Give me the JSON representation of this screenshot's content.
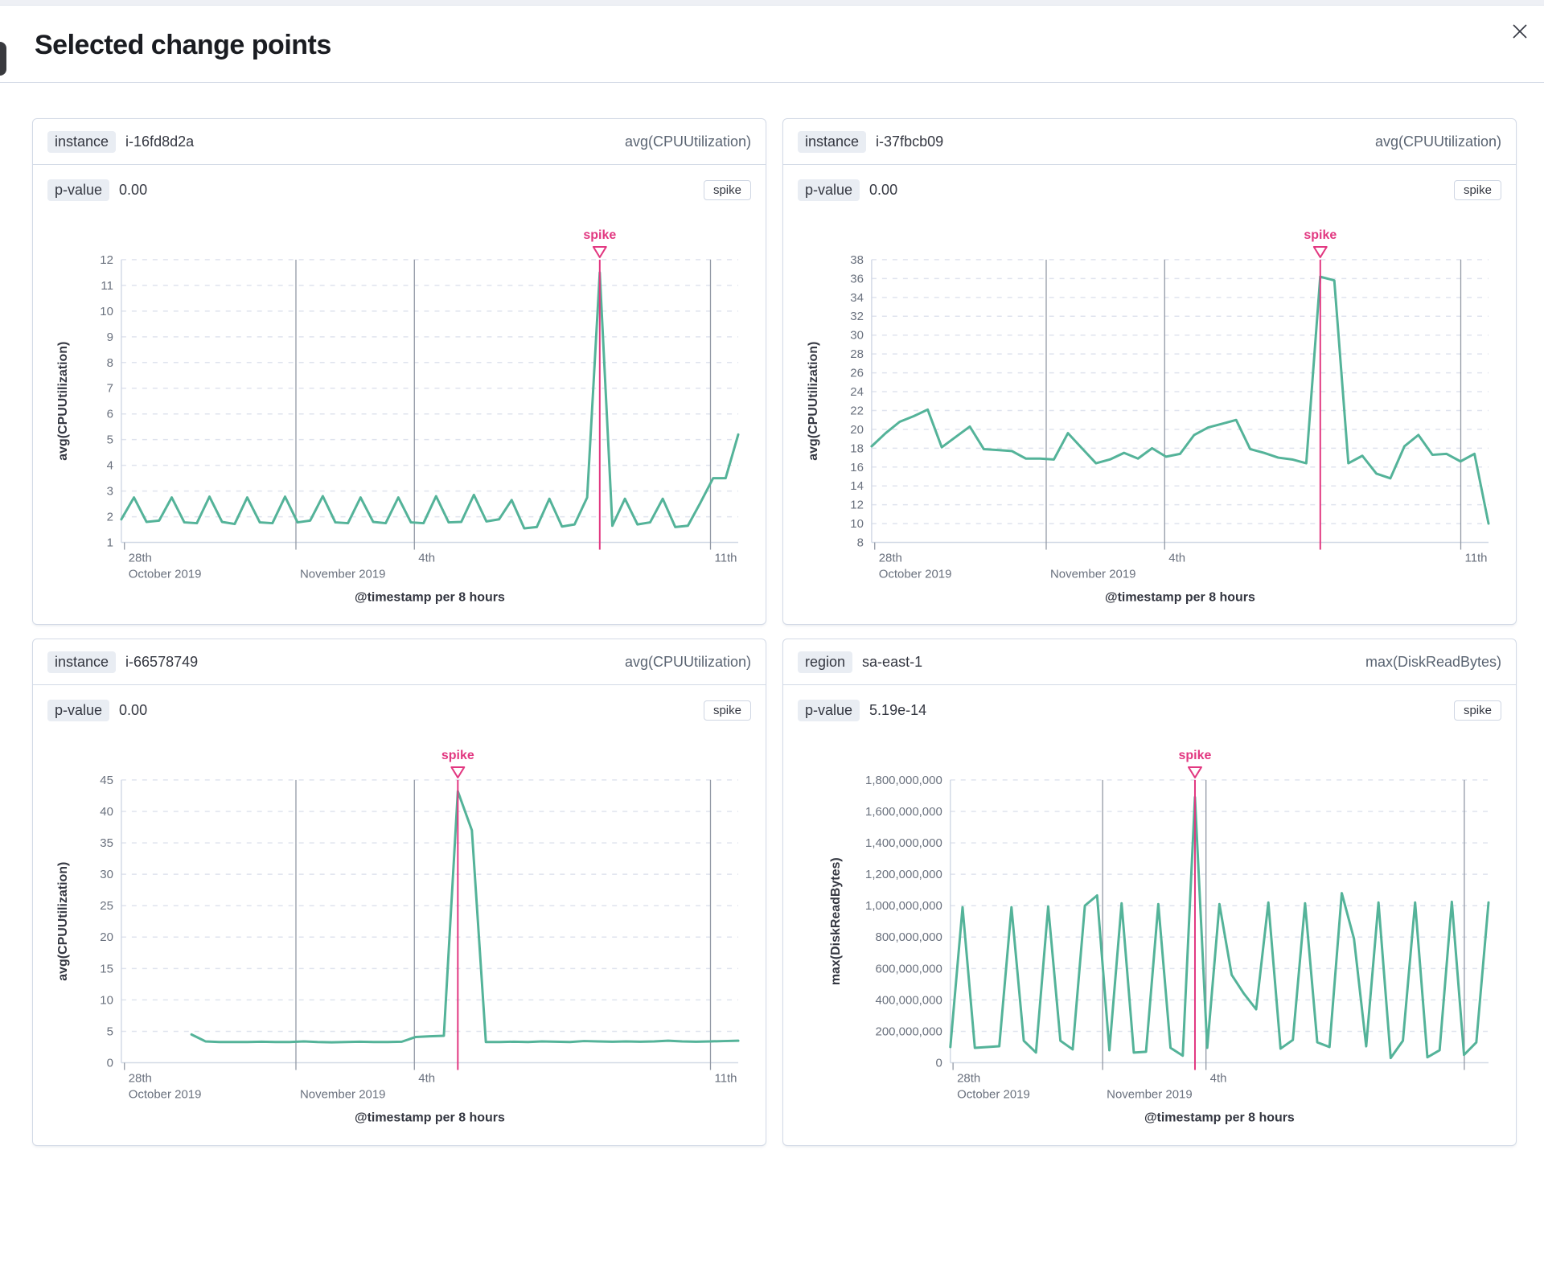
{
  "modal": {
    "title": "Selected change points"
  },
  "colors": {
    "line": "#54b399",
    "annotation": "#e23881",
    "grid": "#dfe3ee",
    "axis": "#d3dae6",
    "separator": "#9299a5",
    "tick_text": "#69707d",
    "title_text": "#343741",
    "metric_text": "#5a6472",
    "badge_bg": "#e9edf3",
    "card_border": "#d3dae6"
  },
  "cards": [
    {
      "badge": "instance",
      "badge_value": "i-16fd8d2a",
      "metric": "avg(CPUUtilization)",
      "pvalue_label": "p-value",
      "pvalue": "0.00",
      "type_label": "spike"
    },
    {
      "badge": "instance",
      "badge_value": "i-37fbcb09",
      "metric": "avg(CPUUtilization)",
      "pvalue_label": "p-value",
      "pvalue": "0.00",
      "type_label": "spike"
    },
    {
      "badge": "instance",
      "badge_value": "i-66578749",
      "metric": "avg(CPUUtilization)",
      "pvalue_label": "p-value",
      "pvalue": "0.00",
      "type_label": "spike"
    },
    {
      "badge": "region",
      "badge_value": "sa-east-1",
      "metric": "max(DiskReadBytes)",
      "pvalue_label": "p-value",
      "pvalue": "5.19e-14",
      "type_label": "spike"
    }
  ],
  "chart_data": [
    {
      "type": "line",
      "entity": "i-16fd8d2a",
      "xlabel": "@timestamp per 8 hours",
      "ylabel": "avg(CPUUtilization)",
      "ylim": [
        1,
        12
      ],
      "ytick_step": 1,
      "yformat": "plain",
      "grid": true,
      "legend_position": "none",
      "annotation": {
        "label": "spike",
        "at": "max"
      },
      "xticks": [
        {
          "f": 0.005,
          "l1": "28th",
          "l2": "October 2019",
          "line": false
        },
        {
          "f": 0.283,
          "l1": "",
          "l2": "November 2019",
          "line": true
        },
        {
          "f": 0.475,
          "l1": "4th",
          "l2": "",
          "line": true
        },
        {
          "f": 0.955,
          "l1": "11th",
          "l2": "",
          "line": true
        }
      ],
      "values": [
        1.9,
        2.75,
        1.8,
        1.85,
        2.75,
        1.78,
        1.75,
        2.78,
        1.8,
        1.72,
        2.75,
        1.78,
        1.75,
        2.78,
        1.78,
        1.85,
        2.8,
        1.78,
        1.75,
        2.75,
        1.8,
        1.75,
        2.75,
        1.78,
        1.75,
        2.8,
        1.78,
        1.8,
        2.85,
        1.82,
        1.9,
        2.65,
        1.55,
        1.6,
        2.7,
        1.62,
        1.7,
        2.75,
        11.5,
        1.65,
        2.7,
        1.7,
        1.78,
        2.7,
        1.6,
        1.65,
        2.55,
        3.5,
        3.5,
        5.2
      ]
    },
    {
      "type": "line",
      "entity": "i-37fbcb09",
      "xlabel": "@timestamp per 8 hours",
      "ylabel": "avg(CPUUtilization)",
      "ylim": [
        8,
        38
      ],
      "ytick_step": 2,
      "yformat": "plain",
      "grid": true,
      "legend_position": "none",
      "annotation": {
        "label": "spike",
        "at": "max"
      },
      "xticks": [
        {
          "f": 0.005,
          "l1": "28th",
          "l2": "October 2019",
          "line": false
        },
        {
          "f": 0.283,
          "l1": "",
          "l2": "November 2019",
          "line": true
        },
        {
          "f": 0.475,
          "l1": "4th",
          "l2": "",
          "line": true
        },
        {
          "f": 0.955,
          "l1": "11th",
          "l2": "",
          "line": true
        }
      ],
      "values": [
        18.2,
        19.6,
        20.8,
        21.4,
        22.1,
        18.1,
        19.2,
        20.3,
        17.9,
        17.8,
        17.7,
        16.9,
        16.9,
        16.8,
        19.6,
        18,
        16.4,
        16.8,
        17.5,
        16.9,
        18,
        17.1,
        17.4,
        19.4,
        20.2,
        20.6,
        21,
        17.9,
        17.5,
        17,
        16.8,
        16.4,
        36.2,
        35.8,
        16.4,
        17.2,
        15.3,
        14.8,
        18.2,
        19.4,
        17.3,
        17.4,
        16.6,
        17.4,
        10
      ]
    },
    {
      "type": "line",
      "entity": "i-66578749",
      "xlabel": "@timestamp per 8 hours",
      "ylabel": "avg(CPUUtilization)",
      "ylim": [
        0,
        45
      ],
      "ytick_step": 5,
      "yformat": "plain",
      "grid": true,
      "legend_position": "none",
      "annotation": {
        "label": "spike",
        "at": "max"
      },
      "xticks": [
        {
          "f": 0.005,
          "l1": "28th",
          "l2": "October 2019",
          "line": false
        },
        {
          "f": 0.283,
          "l1": "",
          "l2": "November 2019",
          "line": true
        },
        {
          "f": 0.475,
          "l1": "4th",
          "l2": "",
          "line": true
        },
        {
          "f": 0.955,
          "l1": "11th",
          "l2": "",
          "line": true
        }
      ],
      "values": [
        null,
        null,
        null,
        null,
        null,
        4.5,
        3.4,
        3.3,
        3.3,
        3.3,
        3.35,
        3.3,
        3.3,
        3.4,
        3.3,
        3.25,
        3.3,
        3.35,
        3.3,
        3.3,
        3.35,
        4.1,
        4.2,
        4.3,
        43.2,
        37,
        3.3,
        3.3,
        3.35,
        3.3,
        3.4,
        3.35,
        3.3,
        3.45,
        3.4,
        3.35,
        3.4,
        3.35,
        3.4,
        3.5,
        3.4,
        3.35,
        3.4,
        3.45,
        3.5
      ]
    },
    {
      "type": "line",
      "entity": "sa-east-1",
      "xlabel": "@timestamp per 8 hours",
      "ylabel": "max(DiskReadBytes)",
      "ylim": [
        0,
        1800000000
      ],
      "ytick_step": 200000000,
      "yformat": "comma",
      "grid": true,
      "legend_position": "none",
      "annotation": {
        "label": "spike",
        "at": "max"
      },
      "xticks": [
        {
          "f": 0.005,
          "l1": "28th",
          "l2": "October 2019",
          "line": false
        },
        {
          "f": 0.283,
          "l1": "",
          "l2": "November 2019",
          "line": true
        },
        {
          "f": 0.475,
          "l1": "4th",
          "l2": "",
          "line": true
        },
        {
          "f": 0.955,
          "l1": "",
          "l2": "",
          "line": true
        }
      ],
      "values": [
        100000000,
        990000000,
        95000000,
        100000000,
        105000000,
        990000000,
        140000000,
        65000000,
        995000000,
        140000000,
        85000000,
        1000000000,
        1065000000,
        80000000,
        1015000000,
        65000000,
        70000000,
        1010000000,
        95000000,
        45000000,
        1690000000,
        95000000,
        1010000000,
        560000000,
        440000000,
        340000000,
        1020000000,
        90000000,
        145000000,
        1015000000,
        130000000,
        100000000,
        1080000000,
        790000000,
        105000000,
        1020000000,
        30000000,
        140000000,
        1020000000,
        35000000,
        80000000,
        1025000000,
        50000000,
        130000000,
        1020000000
      ]
    }
  ]
}
